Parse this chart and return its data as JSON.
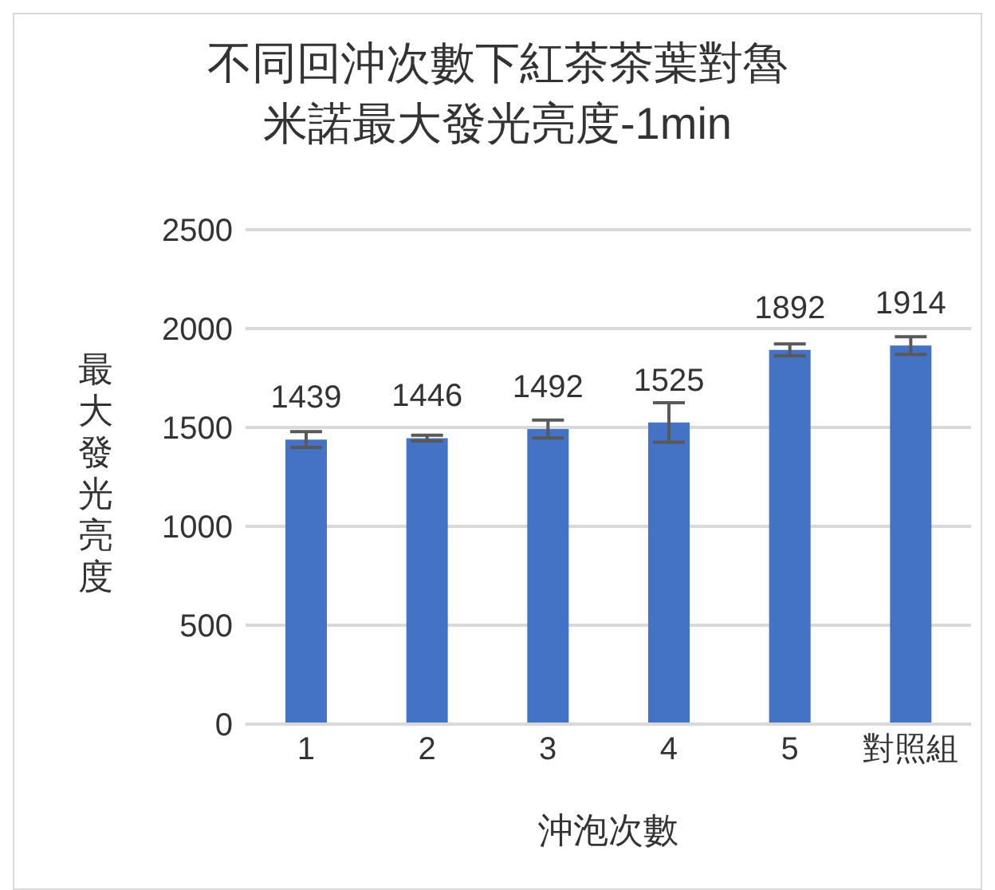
{
  "chart_data": {
    "type": "bar",
    "title": "不同回沖次數下紅茶茶葉對魯米諾最大發光亮度-1min",
    "xlabel": "沖泡次數",
    "ylabel": "最大發光亮度",
    "categories": [
      "1",
      "2",
      "3",
      "4",
      "5",
      "對照組"
    ],
    "values": [
      1439,
      1446,
      1492,
      1525,
      1892,
      1914
    ],
    "errors": [
      40,
      15,
      45,
      100,
      30,
      45
    ],
    "color": "#4472c4",
    "ylim": [
      0,
      2500
    ],
    "yticks": [
      0,
      500,
      1000,
      1500,
      2000,
      2500
    ],
    "grid": "y",
    "data_labels": true
  }
}
